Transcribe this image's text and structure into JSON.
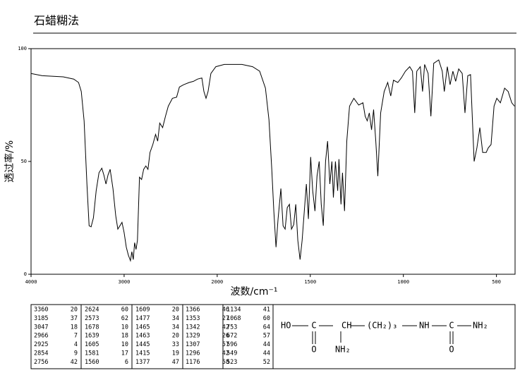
{
  "chart_data": {
    "type": "line",
    "title": "石蜡糊法",
    "xlabel": "波数/cm⁻¹",
    "ylabel": "透过率/%",
    "xlim": [
      4000,
      400
    ],
    "ylim": [
      0,
      100
    ],
    "xticks": [
      4000,
      3000,
      2000,
      1500,
      1000,
      500
    ],
    "yticks": [
      0,
      50,
      100
    ],
    "color": "#000000",
    "x": [
      4000,
      3880,
      3654,
      3541,
      3490,
      3460,
      3430,
      3400,
      3376,
      3355,
      3330,
      3300,
      3270,
      3240,
      3218,
      3195,
      3173,
      3150,
      3120,
      3090,
      3068,
      3045,
      3023,
      3000,
      2977,
      2955,
      2932,
      2917,
      2902,
      2887,
      2872,
      2857,
      2835,
      2812,
      2790,
      2767,
      2744,
      2722,
      2692,
      2662,
      2639,
      2617,
      2586,
      2556,
      2526,
      2481,
      2436,
      2406,
      2361,
      2301,
      2256,
      2211,
      2165,
      2143,
      2120,
      2098,
      2068,
      2015,
      1962,
      1867,
      1810,
      1772,
      1741,
      1722,
      1707,
      1696,
      1684,
      1673,
      1658,
      1646,
      1635,
      1624,
      1612,
      1601,
      1589,
      1578,
      1567,
      1555,
      1544,
      1532,
      1521,
      1510,
      1498,
      1487,
      1475,
      1464,
      1452,
      1441,
      1430,
      1418,
      1407,
      1395,
      1384,
      1376,
      1365,
      1353,
      1346,
      1335,
      1327,
      1316,
      1304,
      1289,
      1266,
      1240,
      1217,
      1205,
      1194,
      1183,
      1171,
      1160,
      1148,
      1137,
      1122,
      1103,
      1084,
      1068,
      1053,
      1030,
      1011,
      989,
      966,
      951,
      939,
      928,
      909,
      897,
      886,
      867,
      852,
      837,
      810,
      791,
      780,
      764,
      749,
      734,
      719,
      703,
      684,
      669,
      654,
      639,
      620,
      605,
      589,
      574,
      555,
      544,
      529,
      513,
      498,
      479,
      456,
      437,
      418,
      403
    ],
    "values": [
      89,
      88,
      87.5,
      86.5,
      85,
      81,
      68,
      40,
      21.5,
      21,
      25,
      37,
      45,
      47,
      44,
      40,
      44,
      46.5,
      38,
      26,
      20,
      21.5,
      23,
      18.5,
      12,
      8.5,
      6,
      10,
      6.5,
      14,
      11,
      15,
      43,
      42,
      46.5,
      48,
      46.5,
      54,
      57.5,
      62,
      59,
      67,
      65,
      70,
      74.5,
      78,
      78.5,
      83,
      84,
      85,
      85.5,
      86.5,
      87,
      81,
      78,
      81,
      89,
      92,
      93,
      93,
      92,
      90,
      82.5,
      68.5,
      46.5,
      28,
      12,
      24.5,
      38,
      21.5,
      20,
      29.5,
      31,
      20,
      22,
      31,
      15,
      6.5,
      15,
      28,
      40,
      24.5,
      52,
      37,
      28,
      43.5,
      50,
      31,
      21.5,
      50,
      59,
      40,
      50,
      34,
      50,
      37,
      51,
      31,
      45,
      28,
      59,
      74.5,
      78,
      75,
      76,
      70,
      68,
      71.5,
      64,
      73,
      59,
      43.5,
      71.5,
      81,
      85,
      79,
      86,
      85,
      87,
      90,
      92,
      90,
      71.5,
      90,
      92,
      81,
      93,
      89,
      70,
      93.5,
      95,
      90,
      81,
      92,
      84,
      90,
      85.5,
      91,
      89,
      71.5,
      88,
      88.5,
      50,
      56,
      65,
      54,
      54,
      56,
      57.5,
      74.5,
      78,
      76,
      82.5,
      81,
      76,
      74.5
    ]
  },
  "peak_table": {
    "columns": [
      [
        [
          3360,
          20
        ],
        [
          3185,
          37
        ],
        [
          3047,
          18
        ],
        [
          2966,
          7
        ],
        [
          2925,
          4
        ],
        [
          2854,
          9
        ],
        [
          2756,
          42
        ]
      ],
      [
        [
          2624,
          60
        ],
        [
          2573,
          62
        ],
        [
          1678,
          10
        ],
        [
          1639,
          18
        ],
        [
          1605,
          10
        ],
        [
          1581,
          17
        ],
        [
          1560,
          6
        ]
      ],
      [
        [
          1609,
          20
        ],
        [
          1477,
          34
        ],
        [
          1465,
          34
        ],
        [
          1463,
          20
        ],
        [
          1445,
          33
        ],
        [
          1415,
          19
        ],
        [
          1377,
          47
        ]
      ],
      [
        [
          1366,
          46
        ],
        [
          1353,
          27
        ],
        [
          1342,
          42
        ],
        [
          1329,
          26
        ],
        [
          1307,
          57
        ],
        [
          1296,
          42
        ],
        [
          1176,
          58
        ]
      ],
      [
        [
          1134,
          41
        ],
        [
          1068,
          60
        ],
        [
          753,
          64
        ],
        [
          672,
          57
        ],
        [
          596,
          44
        ],
        [
          549,
          44
        ],
        [
          523,
          52
        ]
      ]
    ]
  },
  "structure": {
    "labels": [
      "HO",
      "C",
      "CH",
      "(CH₂)₃",
      "NH",
      "C",
      "NH₂",
      "O",
      "NH₂",
      "O"
    ]
  }
}
